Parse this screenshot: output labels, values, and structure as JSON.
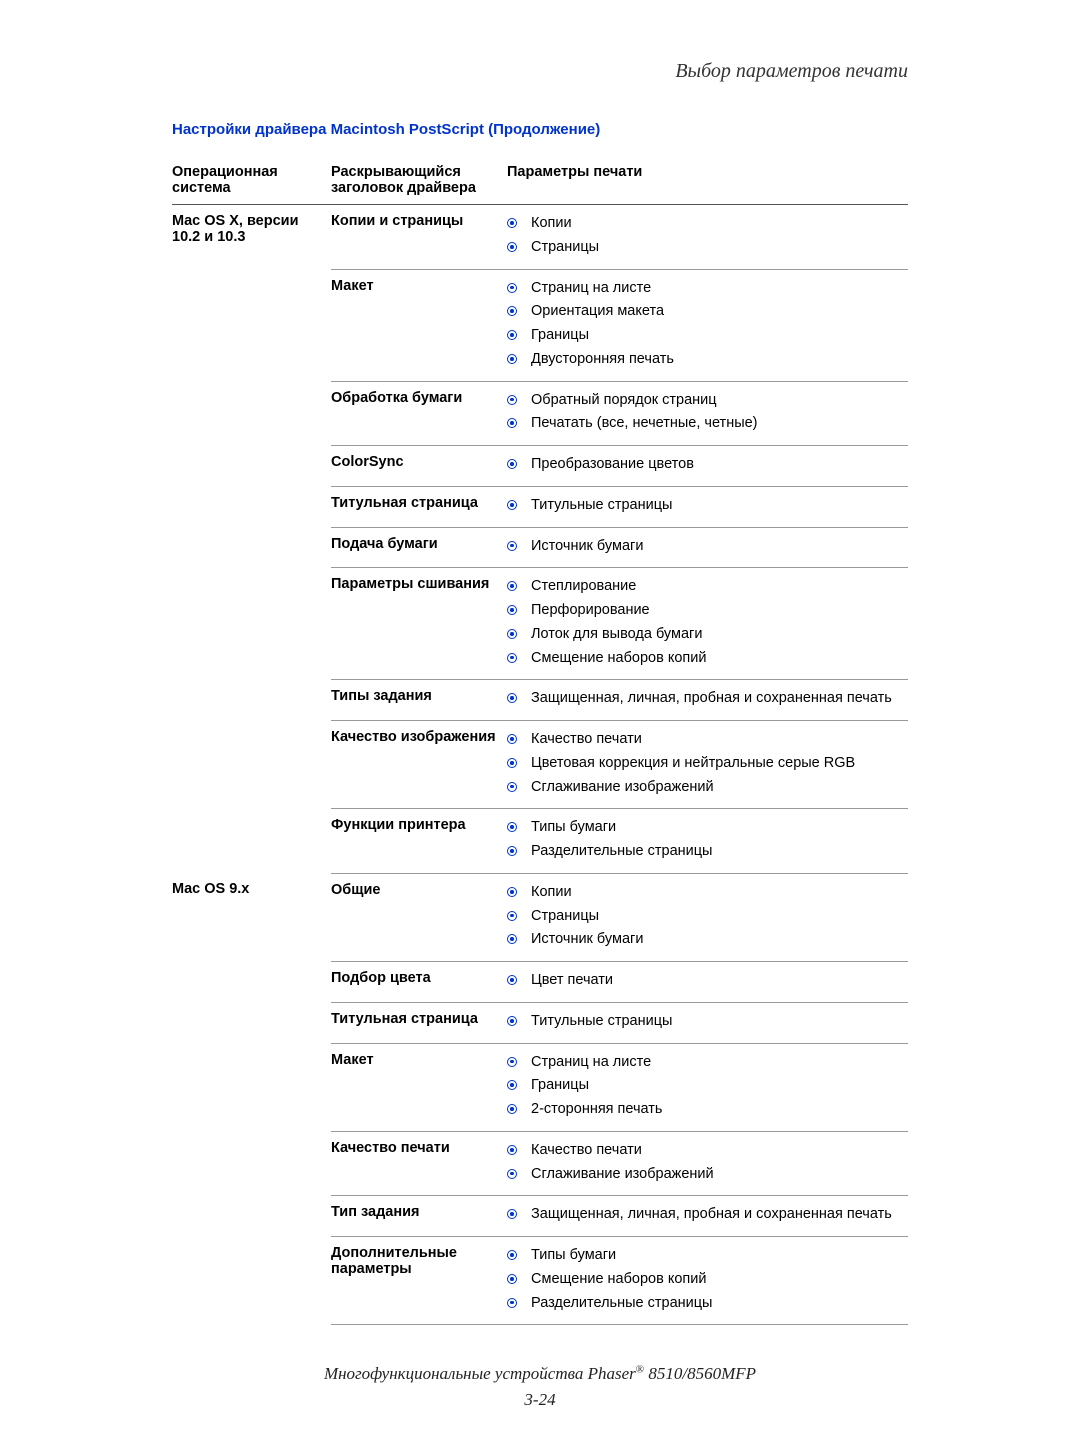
{
  "chapter_title": "Выбор параметров печати",
  "section_title": "Настройки драйвера Macintosh PostScript (Продолжение)",
  "columns": {
    "os": "Операционная система",
    "driver_header": "Раскрывающийся заголовок драйвера",
    "print_params": "Параметры печати"
  },
  "os_groups": [
    {
      "os_label": "Mac OS X, версии 10.2 и 10.3",
      "rows": [
        {
          "header": "Копии и страницы",
          "params": [
            "Копии",
            "Страницы"
          ]
        },
        {
          "header": "Макет",
          "params": [
            "Страниц на листе",
            "Ориентация макета",
            "Границы",
            "Двусторонняя печать"
          ]
        },
        {
          "header": "Обработка бумаги",
          "params": [
            "Обратный порядок страниц",
            "Печатать (все, нечетные, четные)"
          ]
        },
        {
          "header": "ColorSync",
          "params": [
            "Преобразование цветов"
          ]
        },
        {
          "header": "Титульная страница",
          "params": [
            "Титульные страницы"
          ]
        },
        {
          "header": "Подача бумаги",
          "params": [
            "Источник бумаги"
          ]
        },
        {
          "header": "Параметры сшивания",
          "params": [
            "Степлирование",
            "Перфорирование",
            "Лоток для вывода бумаги",
            "Смещение наборов копий"
          ]
        },
        {
          "header": "Типы задания",
          "params": [
            "Защищенная, личная, пробная и сохраненная печать"
          ]
        },
        {
          "header": "Качество изображения",
          "params": [
            "Качество печати",
            "Цветовая коррекция и нейтральные серые RGB",
            "Сглаживание изображений"
          ]
        },
        {
          "header": "Функции принтера",
          "params": [
            "Типы бумаги",
            "Разделительные страницы"
          ]
        }
      ]
    },
    {
      "os_label": "Mac OS 9.x",
      "rows": [
        {
          "header": "Общие",
          "params": [
            "Копии",
            "Страницы",
            "Источник бумаги"
          ]
        },
        {
          "header": "Подбор цвета",
          "params": [
            "Цвет печати"
          ]
        },
        {
          "header": "Титульная страница",
          "params": [
            "Титульные страницы"
          ]
        },
        {
          "header": "Макет",
          "params": [
            "Страниц на листе",
            "Границы",
            "2-сторонняя печать"
          ]
        },
        {
          "header": "Качество печати",
          "params": [
            "Качество печати",
            "Сглаживание изображений"
          ]
        },
        {
          "header": "Тип задания",
          "params": [
            "Защищенная, личная, пробная и сохраненная печать"
          ]
        },
        {
          "header": "Дополнительные параметры",
          "params": [
            "Типы бумаги",
            "Смещение наборов копий",
            "Разделительные страницы"
          ]
        }
      ]
    }
  ],
  "footer_line1_pre": "Многофункциональные устройства Phaser",
  "footer_line1_post": " 8510/8560MFP",
  "footer_page": "3-24"
}
